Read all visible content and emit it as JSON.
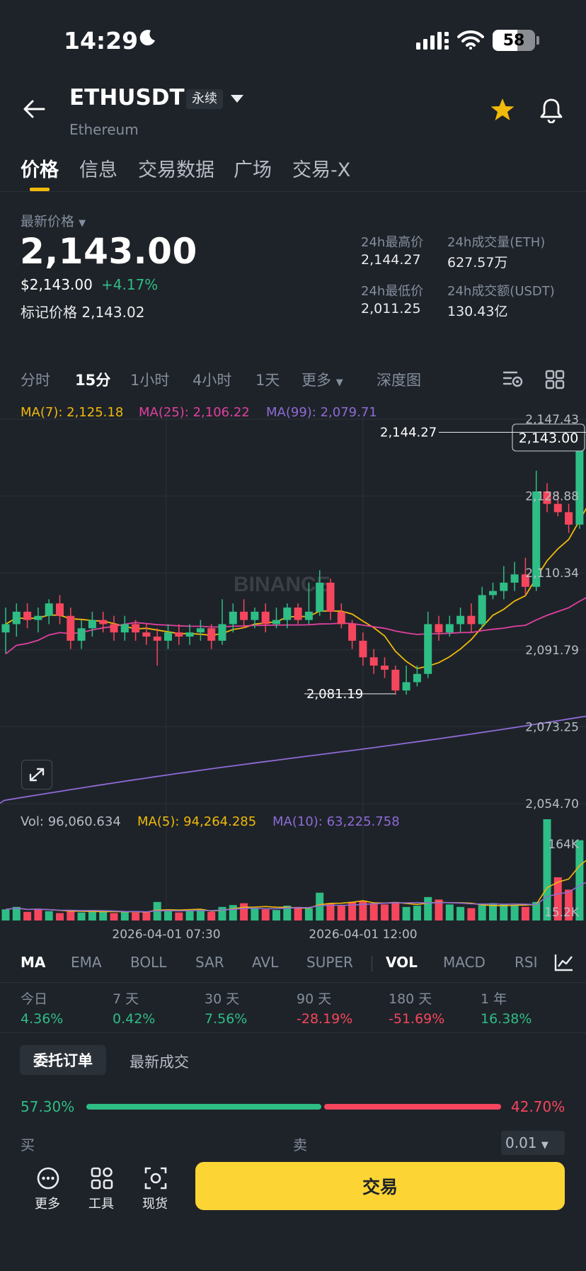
{
  "status_bar": {
    "time": "14:29",
    "battery": "58"
  },
  "header": {
    "symbol": "ETHUSDT",
    "contract_type": "永续",
    "subtitle": "Ethereum"
  },
  "tabs": [
    "价格",
    "信息",
    "交易数据",
    "广场",
    "交易-X"
  ],
  "price": {
    "last_label": "最新价格",
    "last": "2,143.00",
    "usd": "$2,143.00",
    "change": "+4.17%",
    "mark_label": "标记价格",
    "mark": "2,143.02",
    "high_label": "24h最高价",
    "high": "2,144.27",
    "low_label": "24h最低价",
    "low": "2,011.25",
    "vol_eth_label": "24h成交量(ETH)",
    "vol_eth": "627.57万",
    "vol_usdt_label": "24h成交额(USDT)",
    "vol_usdt": "130.43亿"
  },
  "intervals": [
    "分时",
    "15分",
    "1小时",
    "4小时",
    "1天",
    "更多",
    "深度图"
  ],
  "ma_legend": {
    "ma7": "MA(7): 2,125.18",
    "ma25": "MA(25): 2,106.22",
    "ma99": "MA(99): 2,079.71"
  },
  "vol_legend": {
    "vol": "Vol: 96,060.634",
    "ma5": "MA(5): 94,264.285",
    "ma10": "MA(10): 63,225.758"
  },
  "chart_data": {
    "type": "candlestick",
    "price_axis": [
      "2,147.43",
      "2,128.88",
      "2,110.34",
      "2,091.79",
      "2,073.25",
      "2,054.70"
    ],
    "price_range": [
      2054.7,
      2147.43
    ],
    "current_price_tag": "2,143.00",
    "high_marker": "2,144.27",
    "low_marker": "2,081.19",
    "watermark": "BINANCE",
    "volume_axis": [
      "164K",
      "15.2K"
    ],
    "time_axis": [
      "2026-04-01 07:30",
      "2026-04-01 12:00"
    ],
    "candles": [
      [
        2096,
        2098,
        2091,
        2102
      ],
      [
        2098,
        2101,
        2095,
        2103
      ],
      [
        2101,
        2099,
        2097,
        2103
      ],
      [
        2099,
        2100,
        2096,
        2102
      ],
      [
        2100,
        2103,
        2098,
        2104
      ],
      [
        2103,
        2100,
        2098,
        2105
      ],
      [
        2100,
        2094,
        2092,
        2102
      ],
      [
        2094,
        2097,
        2092,
        2099
      ],
      [
        2097,
        2099,
        2095,
        2101
      ],
      [
        2099,
        2098,
        2096,
        2101
      ],
      [
        2098,
        2096,
        2094,
        2100
      ],
      [
        2096,
        2098,
        2094,
        2100
      ],
      [
        2098,
        2096,
        2094,
        2099
      ],
      [
        2096,
        2095,
        2093,
        2098
      ],
      [
        2095,
        2094,
        2088,
        2097
      ],
      [
        2094,
        2096,
        2092,
        2098
      ],
      [
        2096,
        2095,
        2093,
        2098
      ],
      [
        2095,
        2096,
        2093,
        2098
      ],
      [
        2096,
        2097,
        2094,
        2099
      ],
      [
        2097,
        2094,
        2092,
        2098
      ],
      [
        2094,
        2098,
        2093,
        2104
      ],
      [
        2098,
        2101,
        2096,
        2103
      ],
      [
        2101,
        2099,
        2097,
        2104
      ],
      [
        2099,
        2101,
        2097,
        2102
      ],
      [
        2101,
        2098,
        2096,
        2103
      ],
      [
        2098,
        2099,
        2097,
        2102
      ],
      [
        2099,
        2102,
        2097,
        2103
      ],
      [
        2102,
        2099,
        2098,
        2103
      ],
      [
        2099,
        2101,
        2098,
        2108
      ],
      [
        2101,
        2108,
        2100,
        2111
      ],
      [
        2108,
        2101,
        2099,
        2109
      ],
      [
        2101,
        2098,
        2097,
        2103
      ],
      [
        2098,
        2094,
        2092,
        2099
      ],
      [
        2094,
        2090,
        2088,
        2096
      ],
      [
        2090,
        2088,
        2086,
        2092
      ],
      [
        2088,
        2087,
        2085,
        2090
      ],
      [
        2087,
        2082,
        2081,
        2088
      ],
      [
        2082,
        2084,
        2081,
        2088
      ],
      [
        2084,
        2086,
        2083,
        2088
      ],
      [
        2086,
        2098,
        2085,
        2101
      ],
      [
        2098,
        2096,
        2094,
        2100
      ],
      [
        2096,
        2098,
        2095,
        2100
      ],
      [
        2098,
        2100,
        2096,
        2102
      ],
      [
        2100,
        2098,
        2096,
        2103
      ],
      [
        2098,
        2105,
        2097,
        2107
      ],
      [
        2105,
        2106,
        2104,
        2108
      ],
      [
        2106,
        2108,
        2104,
        2112
      ],
      [
        2108,
        2110,
        2106,
        2113
      ],
      [
        2110,
        2107,
        2105,
        2114
      ],
      [
        2107,
        2130,
        2106,
        2135
      ],
      [
        2130,
        2127,
        2125,
        2132
      ],
      [
        2127,
        2125,
        2124,
        2130
      ],
      [
        2125,
        2122,
        2120,
        2127
      ],
      [
        2122,
        2140,
        2121,
        2143
      ],
      [
        2140,
        2143,
        2138,
        2144.27
      ]
    ],
    "volume": [
      18,
      22,
      14,
      19,
      15,
      12,
      16,
      13,
      17,
      14,
      12,
      15,
      13,
      14,
      30,
      15,
      13,
      16,
      18,
      14,
      22,
      25,
      28,
      20,
      18,
      17,
      24,
      22,
      20,
      45,
      28,
      25,
      30,
      32,
      28,
      26,
      30,
      22,
      24,
      38,
      34,
      26,
      22,
      20,
      25,
      28,
      26,
      24,
      22,
      30,
      164,
      70,
      50,
      130,
      100
    ],
    "volume_colors": [
      "g",
      "g",
      "r",
      "r",
      "g",
      "r",
      "r",
      "g",
      "g",
      "g",
      "r",
      "g",
      "r",
      "r",
      "g",
      "g",
      "r",
      "g",
      "g",
      "r",
      "g",
      "g",
      "r",
      "g",
      "r",
      "g",
      "g",
      "r",
      "g",
      "g",
      "r",
      "r",
      "r",
      "r",
      "r",
      "r",
      "r",
      "g",
      "g",
      "g",
      "r",
      "g",
      "g",
      "r",
      "g",
      "g",
      "g",
      "g",
      "r",
      "g",
      "g",
      "r",
      "r",
      "g",
      "g"
    ]
  },
  "indicators": [
    "MA",
    "EMA",
    "BOLL",
    "SAR",
    "AVL",
    "SUPER",
    "VOL",
    "MACD",
    "RSI"
  ],
  "performance": [
    {
      "label": "今日",
      "value": "4.36%"
    },
    {
      "label": "7 天",
      "value": "0.42%"
    },
    {
      "label": "30 天",
      "value": "7.56%"
    },
    {
      "label": "90 天",
      "value": "-28.19%"
    },
    {
      "label": "180 天",
      "value": "-51.69%"
    },
    {
      "label": "1 年",
      "value": "16.38%"
    }
  ],
  "orderbook": {
    "tab_orders": "委托订单",
    "tab_trades": "最新成交",
    "buy_pct": "57.30%",
    "sell_pct": "42.70%",
    "buy_label": "买",
    "sell_label": "卖",
    "precision": "0.01"
  },
  "bottom_bar": {
    "more": "更多",
    "tools": "工具",
    "spot": "现货",
    "trade": "交易"
  },
  "colors": {
    "up": "#2ebd85",
    "down": "#f6465d",
    "accent": "#f0b90b",
    "ma7": "#f0b90b",
    "ma25": "#e040a0",
    "ma99": "#8e6bd6"
  }
}
